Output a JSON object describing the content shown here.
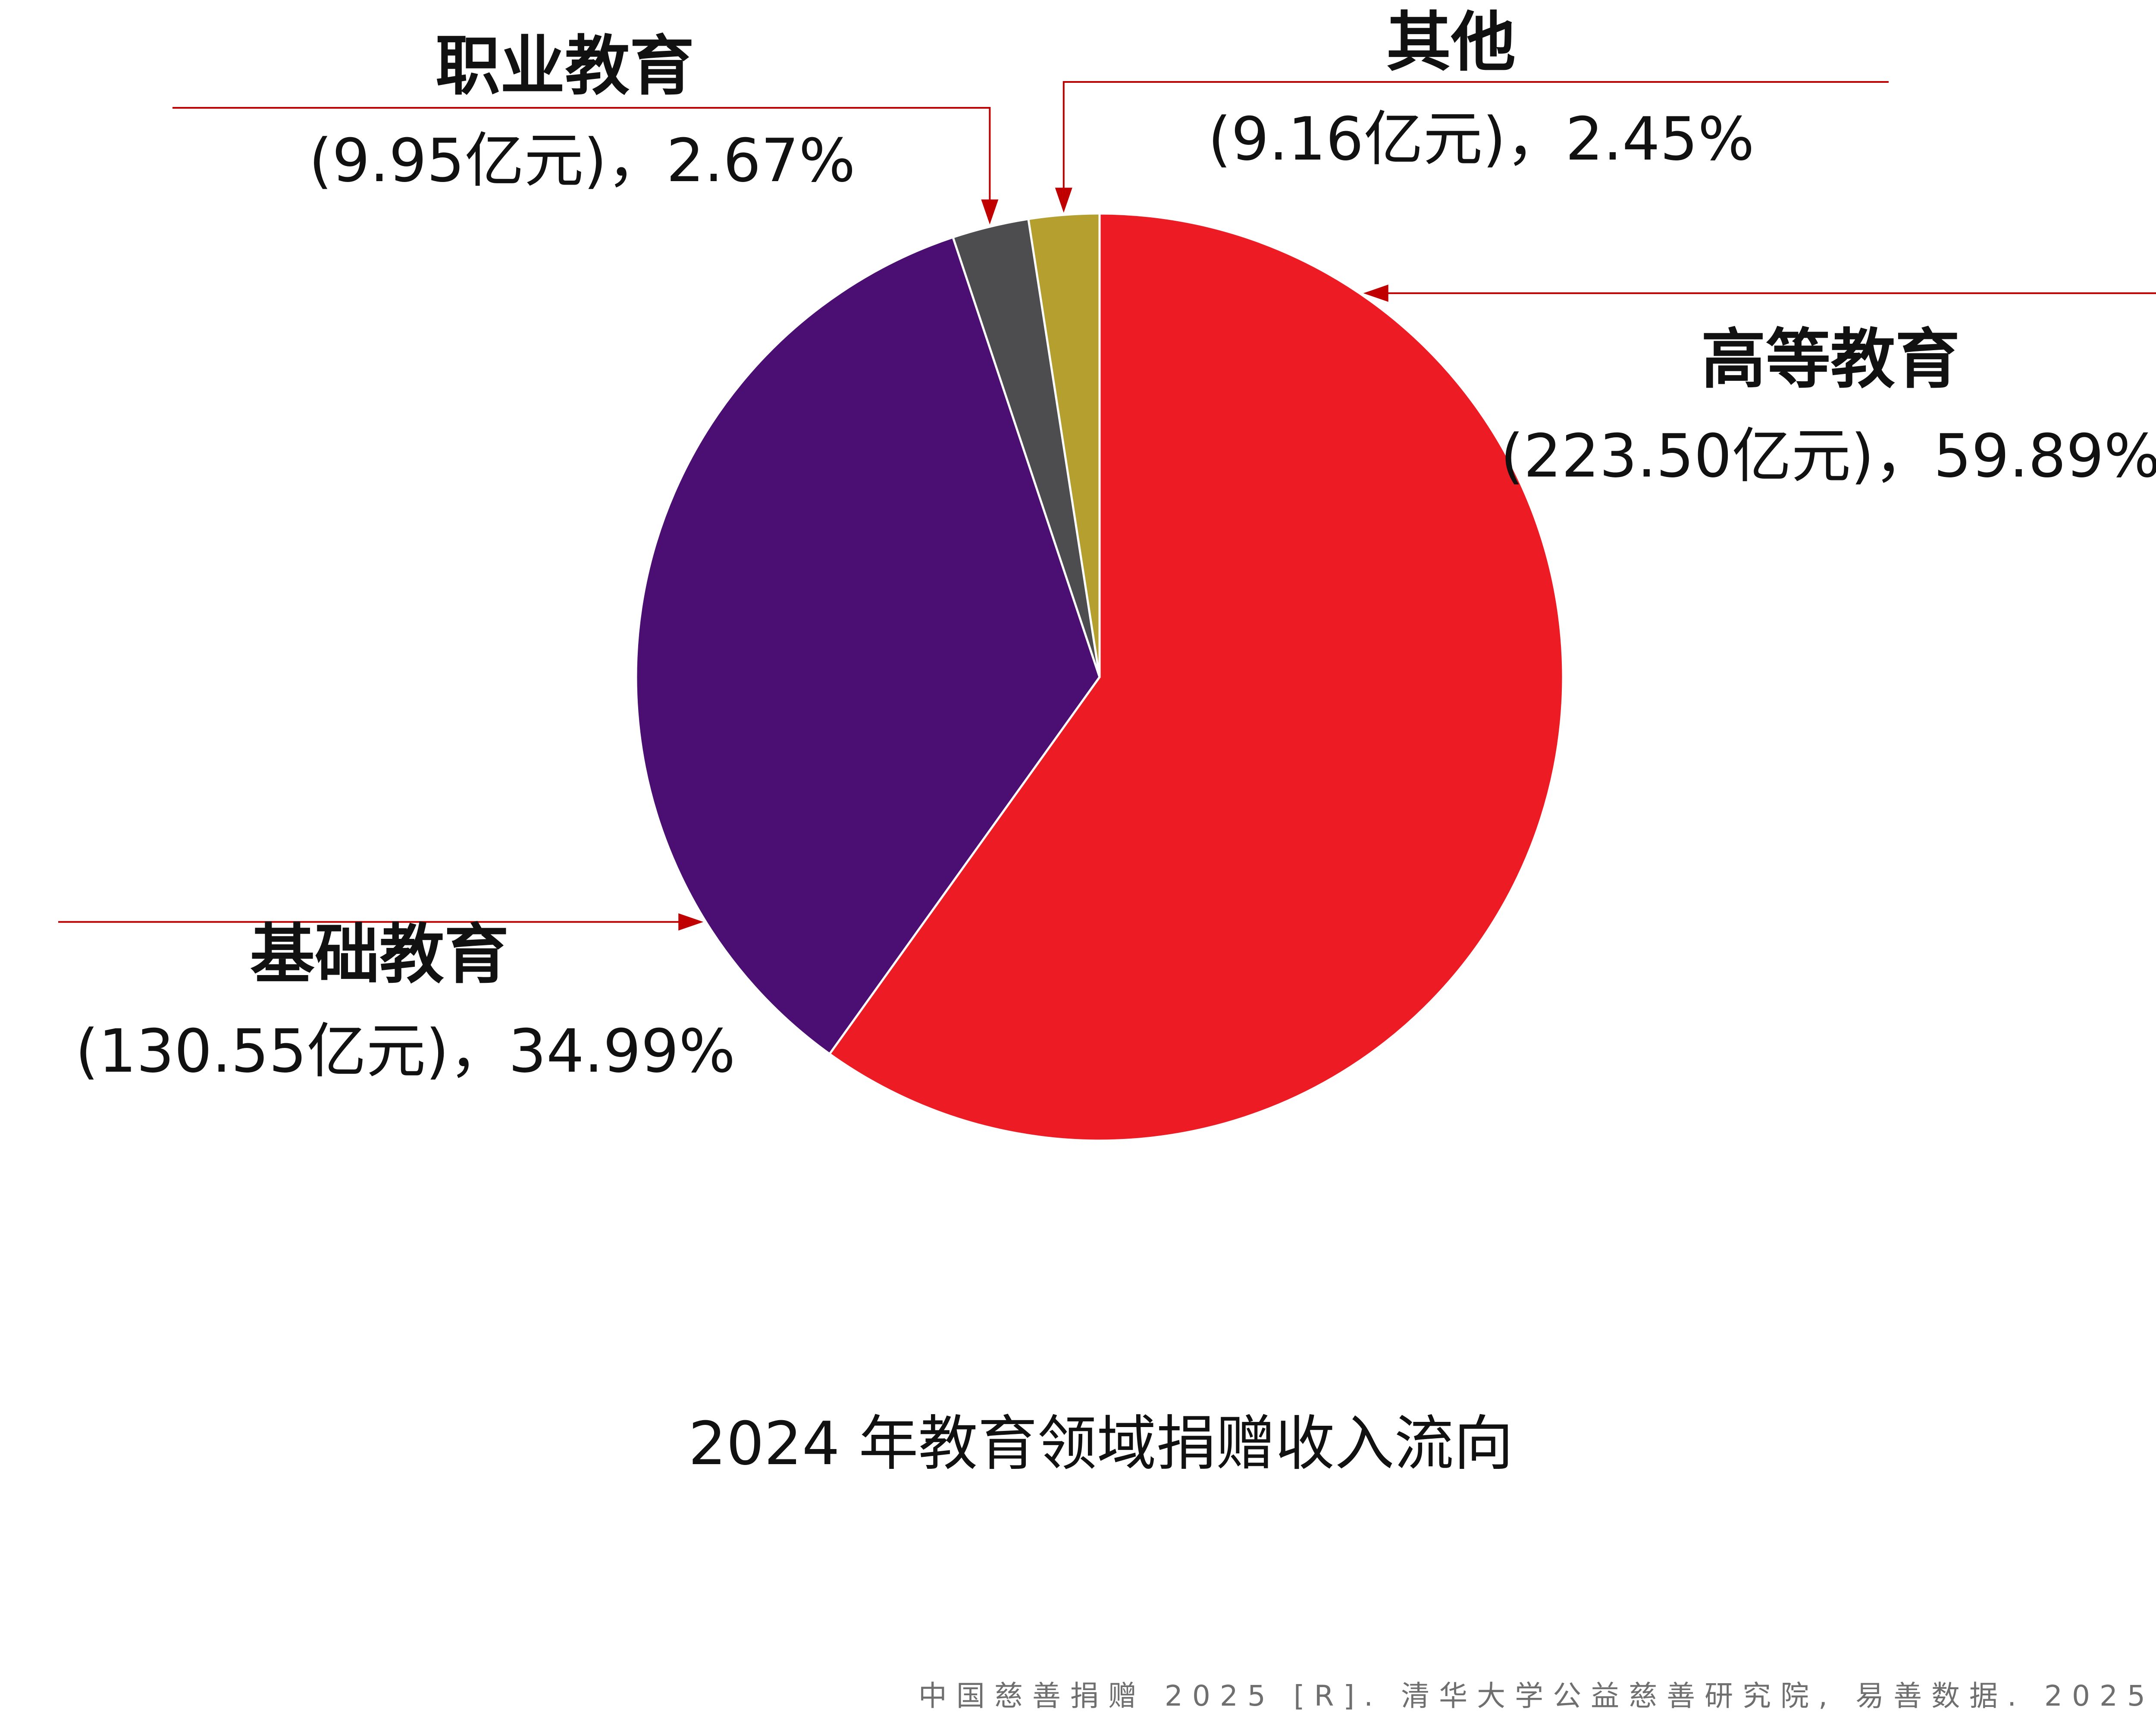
{
  "chart_data": {
    "type": "pie",
    "title": "2024 年教育领域捐赠收入流向",
    "source": "中国慈善捐赠 2025 [R]. 清华大学公益慈善研究院, 易善数据. 2025.",
    "start_angle_deg": 0,
    "direction": "clockwise",
    "slices": [
      {
        "key": "higher",
        "label": "高等教育",
        "value": 223.5,
        "percent": 59.89,
        "value_text": "(223.50亿元)，59.89%",
        "color": "#ED1C24"
      },
      {
        "key": "basic",
        "label": "基础教育",
        "value": 130.55,
        "percent": 34.99,
        "value_text": "(130.55亿元)，34.99%",
        "color": "#4B0E72"
      },
      {
        "key": "vocational",
        "label": "职业教育",
        "value": 9.95,
        "percent": 2.67,
        "value_text": "(9.95亿元)，2.67%",
        "color": "#4D4D4F"
      },
      {
        "key": "other",
        "label": "其他",
        "value": 9.16,
        "percent": 2.45,
        "value_text": "(9.16亿元)，2.45%",
        "color": "#B59F2F"
      }
    ],
    "leader_color": "#C00000",
    "legend": "none"
  }
}
